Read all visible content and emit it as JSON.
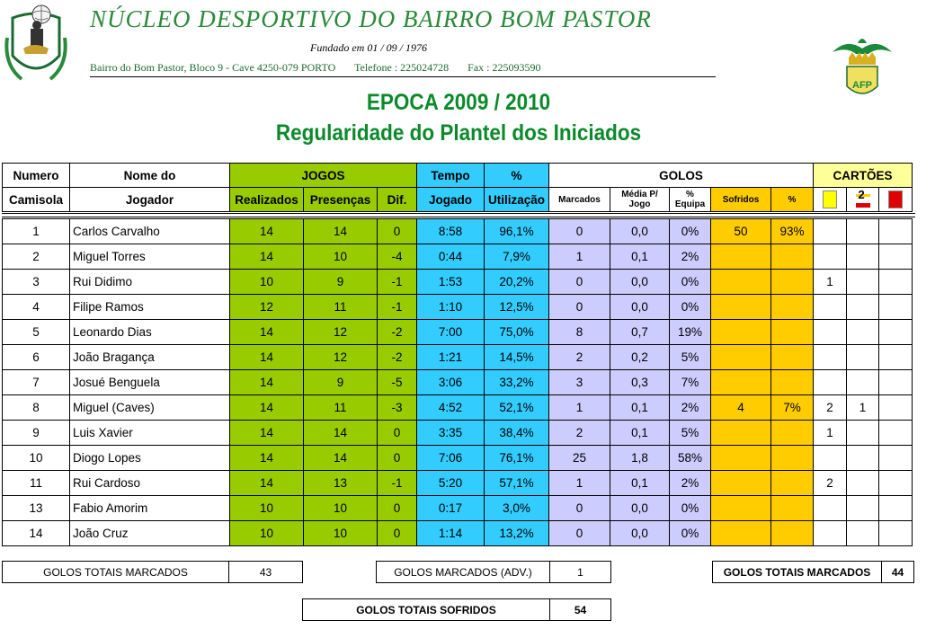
{
  "header": {
    "club_name": "NÚCLEO DESPORTIVO DO BAIRRO BOM PASTOR",
    "founded": "Fundado em 01 / 09 / 1976",
    "address": "Bairro do Bom Pastor, Bloco 9 - Cave   4250-079 PORTO",
    "phone": "Telefone : 225024728",
    "fax": "Fax : 225093590",
    "season": "EPOCA 2009 / 2010",
    "subtitle": "Regularidade do Plantel dos Iniciados",
    "afp_logo_text": "AFP"
  },
  "columns": {
    "numero": "Numero",
    "camisola": "Camisola",
    "nome_do": "Nome do",
    "jogador": "Jogador",
    "jogos": "JOGOS",
    "realizados": "Realizados",
    "presencas": "Presenças",
    "dif": "Dif.",
    "tempo": "Tempo",
    "jogado": "Jogado",
    "pct": "%",
    "utilizacao": "Utilização",
    "golos": "GOLOS",
    "marcados": "Marcados",
    "media_1": "Média P/",
    "media_2": "Jogo",
    "pct_equipa_1": "%",
    "pct_equipa_2": "Equipa",
    "sofridos": "Sofridos",
    "pct_sof": "%",
    "cartoes": "CARTÕES",
    "second_yellow_glyph": "2"
  },
  "rows": [
    {
      "num": "1",
      "name": "Carlos Carvalho",
      "real": "14",
      "pres": "14",
      "dif": "0",
      "tempo": "8:58",
      "util": "96,1%",
      "marc": "0",
      "media": "0,0",
      "eq": "0%",
      "sof": "50",
      "sofp": "93%",
      "c1": "",
      "c2": "",
      "c3": ""
    },
    {
      "num": "2",
      "name": "Miguel Torres",
      "real": "14",
      "pres": "10",
      "dif": "-4",
      "tempo": "0:44",
      "util": "7,9%",
      "marc": "1",
      "media": "0,1",
      "eq": "2%",
      "sof": "",
      "sofp": "",
      "c1": "",
      "c2": "",
      "c3": ""
    },
    {
      "num": "3",
      "name": "Rui Didimo",
      "real": "10",
      "pres": "9",
      "dif": "-1",
      "tempo": "1:53",
      "util": "20,2%",
      "marc": "0",
      "media": "0,0",
      "eq": "0%",
      "sof": "",
      "sofp": "",
      "c1": "1",
      "c2": "",
      "c3": ""
    },
    {
      "num": "4",
      "name": "Filipe Ramos",
      "real": "12",
      "pres": "11",
      "dif": "-1",
      "tempo": "1:10",
      "util": "12,5%",
      "marc": "0",
      "media": "0,0",
      "eq": "0%",
      "sof": "",
      "sofp": "",
      "c1": "",
      "c2": "",
      "c3": ""
    },
    {
      "num": "5",
      "name": "Leonardo Dias",
      "real": "14",
      "pres": "12",
      "dif": "-2",
      "tempo": "7:00",
      "util": "75,0%",
      "marc": "8",
      "media": "0,7",
      "eq": "19%",
      "sof": "",
      "sofp": "",
      "c1": "",
      "c2": "",
      "c3": ""
    },
    {
      "num": "6",
      "name": "João Bragança",
      "real": "14",
      "pres": "12",
      "dif": "-2",
      "tempo": "1:21",
      "util": "14,5%",
      "marc": "2",
      "media": "0,2",
      "eq": "5%",
      "sof": "",
      "sofp": "",
      "c1": "",
      "c2": "",
      "c3": ""
    },
    {
      "num": "7",
      "name": "Josué Benguela",
      "real": "14",
      "pres": "9",
      "dif": "-5",
      "tempo": "3:06",
      "util": "33,2%",
      "marc": "3",
      "media": "0,3",
      "eq": "7%",
      "sof": "",
      "sofp": "",
      "c1": "",
      "c2": "",
      "c3": ""
    },
    {
      "num": "8",
      "name": "Miguel (Caves)",
      "real": "14",
      "pres": "11",
      "dif": "-3",
      "tempo": "4:52",
      "util": "52,1%",
      "marc": "1",
      "media": "0,1",
      "eq": "2%",
      "sof": "4",
      "sofp": "7%",
      "c1": "2",
      "c2": "1",
      "c3": ""
    },
    {
      "num": "9",
      "name": "Luis Xavier",
      "real": "14",
      "pres": "14",
      "dif": "0",
      "tempo": "3:35",
      "util": "38,4%",
      "marc": "2",
      "media": "0,1",
      "eq": "5%",
      "sof": "",
      "sofp": "",
      "c1": "1",
      "c2": "",
      "c3": ""
    },
    {
      "num": "10",
      "name": "Diogo Lopes",
      "real": "14",
      "pres": "14",
      "dif": "0",
      "tempo": "7:06",
      "util": "76,1%",
      "marc": "25",
      "media": "1,8",
      "eq": "58%",
      "sof": "",
      "sofp": "",
      "c1": "",
      "c2": "",
      "c3": ""
    },
    {
      "num": "11",
      "name": "Rui Cardoso",
      "real": "14",
      "pres": "13",
      "dif": "-1",
      "tempo": "5:20",
      "util": "57,1%",
      "marc": "1",
      "media": "0,1",
      "eq": "2%",
      "sof": "",
      "sofp": "",
      "c1": "2",
      "c2": "",
      "c3": ""
    },
    {
      "num": "13",
      "name": "Fabio Amorim",
      "real": "10",
      "pres": "10",
      "dif": "0",
      "tempo": "0:17",
      "util": "3,0%",
      "marc": "0",
      "media": "0,0",
      "eq": "0%",
      "sof": "",
      "sofp": "",
      "c1": "",
      "c2": "",
      "c3": ""
    },
    {
      "num": "14",
      "name": "João Cruz",
      "real": "10",
      "pres": "10",
      "dif": "0",
      "tempo": "1:14",
      "util": "13,2%",
      "marc": "0",
      "media": "0,0",
      "eq": "0%",
      "sof": "",
      "sofp": "",
      "c1": "",
      "c2": "",
      "c3": ""
    }
  ],
  "totals": {
    "marcados_label": "GOLOS TOTAIS MARCADOS",
    "marcados_value": "43",
    "adv_label": "GOLOS MARCADOS (ADV.)",
    "adv_value": "1",
    "total_marcados_label": "GOLOS TOTAIS MARCADOS",
    "total_marcados_value": "44",
    "sofridos_label": "GOLOS TOTAIS SOFRIDOS",
    "sofridos_value": "54"
  },
  "colors": {
    "green": "#99cc00",
    "blue": "#33ccff",
    "lavender": "#ccccff",
    "orange": "#ffcc00",
    "title_green": "#0a8a2a"
  }
}
